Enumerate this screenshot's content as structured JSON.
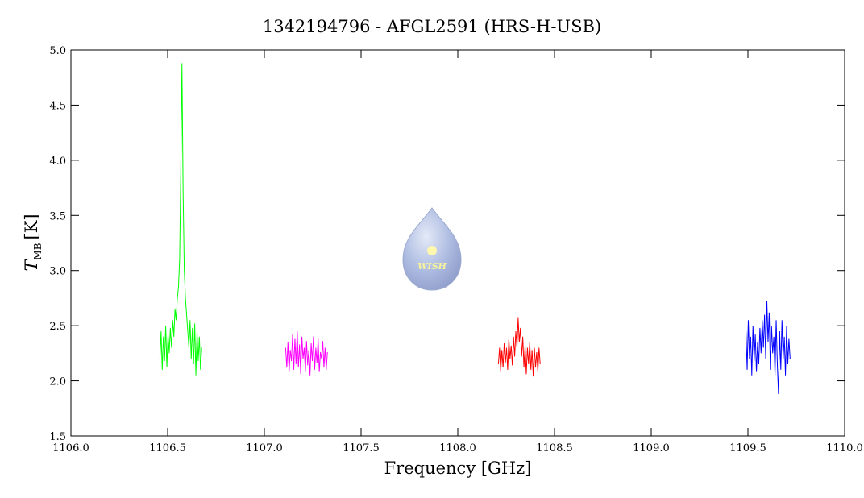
{
  "chart_data": {
    "type": "line",
    "title": "1342194796 - AFGL2591 (HRS-H-USB)",
    "xlabel": "Frequency [GHz]",
    "ylabel": {
      "main": "T",
      "sub": "MB",
      "unit": "[K]"
    },
    "logo_text": "WISH",
    "xlim": [
      1106.0,
      1110.0
    ],
    "ylim": [
      1.5,
      5.0
    ],
    "xticks": [
      {
        "value": 1106,
        "label": "1106.0"
      },
      1106.5,
      {
        "value": 1107,
        "label": "1107.0"
      },
      1107.5,
      {
        "value": 1108,
        "label": "1108.0"
      },
      1108.5,
      {
        "value": 1109,
        "label": "1109.0"
      },
      1109.5,
      {
        "value": 1110,
        "label": "1110.0"
      }
    ],
    "yticks": [
      1.5,
      {
        "value": 2,
        "label": "2.0"
      },
      2.5,
      {
        "value": 3,
        "label": "3.0"
      },
      3.5,
      {
        "value": 4,
        "label": "4.0"
      },
      4.5,
      {
        "value": 5,
        "label": "5.0"
      }
    ],
    "series": [
      {
        "color": "#00ff00",
        "x": [
          1106.46,
          1106.466,
          1106.472,
          1106.478,
          1106.484,
          1106.49,
          1106.496,
          1106.502,
          1106.508,
          1106.514,
          1106.52,
          1106.526,
          1106.532,
          1106.538,
          1106.544,
          1106.55,
          1106.556,
          1106.562,
          1106.568,
          1106.574,
          1106.58,
          1106.586,
          1106.592,
          1106.598,
          1106.604,
          1106.61,
          1106.616,
          1106.622,
          1106.628,
          1106.634,
          1106.64,
          1106.646,
          1106.652,
          1106.658,
          1106.664,
          1106.67,
          1106.676
        ],
        "values": [
          2.2,
          2.45,
          2.1,
          2.4,
          2.18,
          2.5,
          2.12,
          2.42,
          2.25,
          2.48,
          2.3,
          2.55,
          2.4,
          2.65,
          2.55,
          2.75,
          2.85,
          3.1,
          3.9,
          4.88,
          3.7,
          3.0,
          2.75,
          2.6,
          2.45,
          2.3,
          2.55,
          2.2,
          2.48,
          2.15,
          2.52,
          2.05,
          2.45,
          2.18,
          2.4,
          2.1,
          2.3
        ]
      },
      {
        "color": "#ff00ff",
        "x": [
          1107.11,
          1107.116,
          1107.122,
          1107.128,
          1107.134,
          1107.14,
          1107.146,
          1107.152,
          1107.158,
          1107.164,
          1107.17,
          1107.176,
          1107.182,
          1107.188,
          1107.194,
          1107.2,
          1107.206,
          1107.212,
          1107.218,
          1107.224,
          1107.23,
          1107.236,
          1107.242,
          1107.248,
          1107.254,
          1107.26,
          1107.266,
          1107.272,
          1107.278,
          1107.284,
          1107.29,
          1107.296,
          1107.302,
          1107.308,
          1107.314,
          1107.32,
          1107.326
        ],
        "values": [
          2.3,
          2.12,
          2.35,
          2.08,
          2.28,
          2.18,
          2.42,
          2.1,
          2.38,
          2.15,
          2.45,
          2.12,
          2.33,
          2.06,
          2.4,
          2.2,
          2.3,
          2.08,
          2.36,
          2.14,
          2.28,
          2.05,
          2.34,
          2.18,
          2.4,
          2.1,
          2.3,
          2.16,
          2.38,
          2.08,
          2.26,
          2.2,
          2.36,
          2.12,
          2.3,
          2.1,
          2.26
        ]
      },
      {
        "color": "#ff0000",
        "x": [
          1108.21,
          1108.216,
          1108.222,
          1108.228,
          1108.234,
          1108.24,
          1108.246,
          1108.252,
          1108.258,
          1108.264,
          1108.27,
          1108.276,
          1108.282,
          1108.288,
          1108.294,
          1108.3,
          1108.306,
          1108.312,
          1108.318,
          1108.324,
          1108.33,
          1108.336,
          1108.342,
          1108.348,
          1108.354,
          1108.36,
          1108.366,
          1108.372,
          1108.378,
          1108.384,
          1108.39,
          1108.396,
          1108.402,
          1108.408,
          1108.414,
          1108.42,
          1108.426
        ],
        "values": [
          2.15,
          2.3,
          2.08,
          2.28,
          2.12,
          2.34,
          2.16,
          2.3,
          2.1,
          2.38,
          2.2,
          2.32,
          2.14,
          2.4,
          2.22,
          2.45,
          2.3,
          2.57,
          2.35,
          2.48,
          2.22,
          2.4,
          2.12,
          2.32,
          2.06,
          2.3,
          2.15,
          2.35,
          2.1,
          2.28,
          2.04,
          2.3,
          2.12,
          2.26,
          2.08,
          2.3,
          2.15
        ]
      },
      {
        "color": "#0000ff",
        "x": [
          1109.49,
          1109.496,
          1109.502,
          1109.508,
          1109.514,
          1109.52,
          1109.526,
          1109.532,
          1109.538,
          1109.544,
          1109.55,
          1109.556,
          1109.562,
          1109.568,
          1109.574,
          1109.58,
          1109.586,
          1109.592,
          1109.598,
          1109.604,
          1109.61,
          1109.616,
          1109.622,
          1109.628,
          1109.634,
          1109.64,
          1109.646,
          1109.652,
          1109.658,
          1109.664,
          1109.67,
          1109.676,
          1109.682,
          1109.688,
          1109.694,
          1109.7,
          1109.706,
          1109.712,
          1109.718
        ],
        "values": [
          2.45,
          2.1,
          2.55,
          2.2,
          2.4,
          2.05,
          2.5,
          2.18,
          2.42,
          2.08,
          2.35,
          2.15,
          2.48,
          2.25,
          2.55,
          2.3,
          2.6,
          2.2,
          2.72,
          2.35,
          2.62,
          2.1,
          2.5,
          2.25,
          2.4,
          2.05,
          2.55,
          2.15,
          1.88,
          2.45,
          2.1,
          2.55,
          2.2,
          2.4,
          2.05,
          2.5,
          2.15,
          2.38,
          2.2
        ]
      }
    ]
  }
}
